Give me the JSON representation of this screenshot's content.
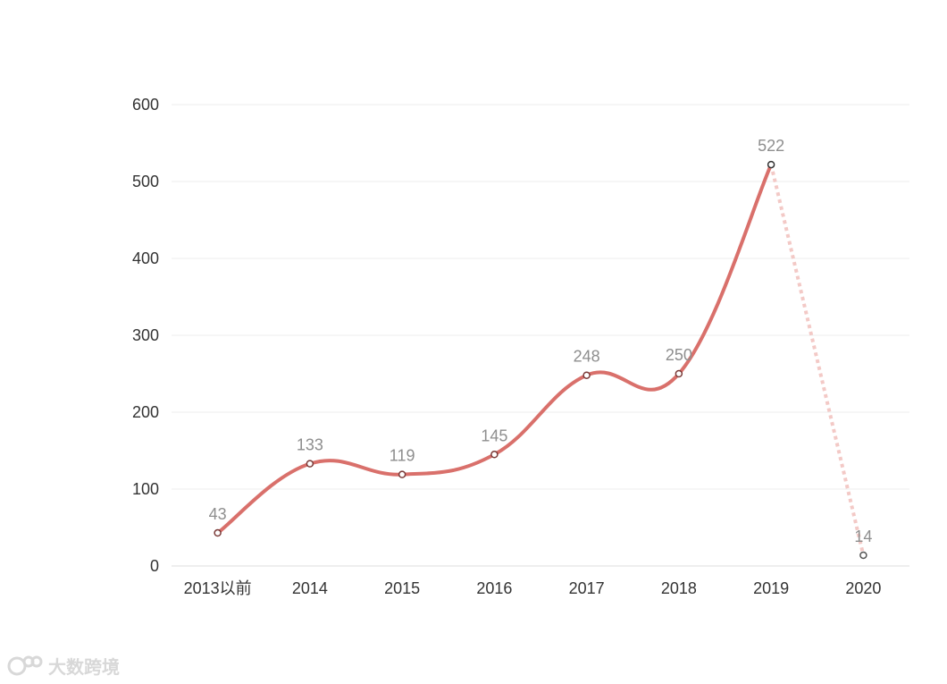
{
  "chart_data": {
    "type": "line",
    "categories": [
      "2013以前",
      "2014",
      "2015",
      "2016",
      "2017",
      "2018",
      "2019",
      "2020"
    ],
    "values": [
      43,
      133,
      119,
      145,
      248,
      250,
      522,
      14
    ],
    "ylim": [
      0,
      600
    ],
    "yticks": [
      0,
      100,
      200,
      300,
      400,
      500,
      600
    ],
    "grid": true,
    "line_style": "smooth",
    "last_segment_style": "dotted",
    "colors": {
      "line": "#d9706b",
      "dotted": "#f3c9c6",
      "grid": "#eeeeee",
      "axis": "#dddddd"
    }
  },
  "watermark": {
    "text": "大数跨境",
    "icon": "logo-icon"
  }
}
